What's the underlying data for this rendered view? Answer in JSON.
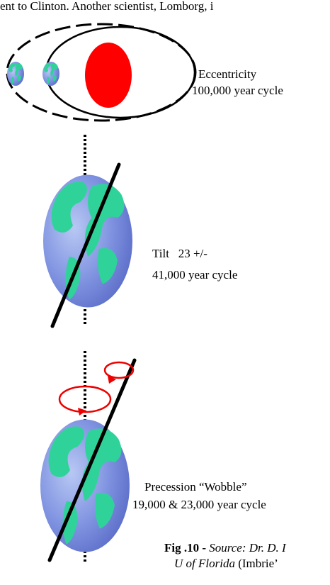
{
  "header": {
    "text": "ent to Clinton. Another scientist, Lomborg, i"
  },
  "panels": [
    {
      "label": "Eccentricity",
      "cycle": "100,000 year cycle"
    },
    {
      "label": "Tilt   23 +/-",
      "cycle": "41,000 year cycle"
    },
    {
      "label": "Precession “Wobble”",
      "cycle": "19,000 & 23,000 year cycle"
    }
  ],
  "caption": {
    "figure": "Fig .10 - ",
    "source": "Source: Dr. D. I",
    "institution": "U of Florida",
    "rest": " (Imbrie’"
  }
}
